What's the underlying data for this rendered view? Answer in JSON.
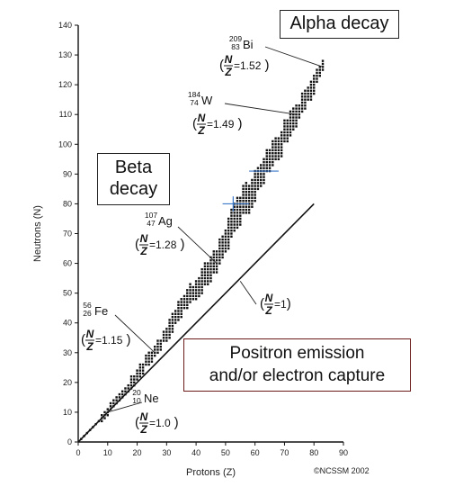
{
  "chart_data": {
    "type": "scatter",
    "xlabel": "Protons (Z)",
    "ylabel": "Neutrons (N)",
    "xlim": [
      0,
      90
    ],
    "ylim": [
      0,
      140
    ],
    "x_ticks": [
      "0",
      "10",
      "20",
      "30",
      "40",
      "50",
      "60",
      "70",
      "80",
      "90"
    ],
    "y_ticks": [
      "0",
      "10",
      "20",
      "30",
      "40",
      "50",
      "60",
      "70",
      "80",
      "90",
      "100",
      "110",
      "120",
      "130",
      "140"
    ],
    "grid": false,
    "reference_line": {
      "label": "=1",
      "num": "N",
      "den": "Z",
      "points": [
        [
          0,
          0
        ],
        [
          80,
          80
        ]
      ]
    },
    "stable_band": [
      [
        1,
        1
      ],
      [
        2,
        2
      ],
      [
        3,
        3
      ],
      [
        4,
        4
      ],
      [
        5,
        5
      ],
      [
        6,
        6
      ],
      [
        7,
        7
      ],
      [
        8,
        8
      ],
      [
        9,
        9
      ],
      [
        10,
        10
      ],
      [
        11,
        12
      ],
      [
        12,
        13
      ],
      [
        13,
        14
      ],
      [
        14,
        15
      ],
      [
        15,
        16
      ],
      [
        16,
        17
      ],
      [
        17,
        18
      ],
      [
        18,
        20
      ],
      [
        19,
        21
      ],
      [
        20,
        22
      ],
      [
        21,
        24
      ],
      [
        22,
        25
      ],
      [
        23,
        27
      ],
      [
        24,
        28
      ],
      [
        25,
        29
      ],
      [
        26,
        30
      ],
      [
        27,
        32
      ],
      [
        28,
        33
      ],
      [
        29,
        35
      ],
      [
        30,
        36
      ],
      [
        31,
        38
      ],
      [
        32,
        40
      ],
      [
        33,
        42
      ],
      [
        34,
        44
      ],
      [
        35,
        45
      ],
      [
        36,
        47
      ],
      [
        37,
        48
      ],
      [
        38,
        50
      ],
      [
        39,
        50
      ],
      [
        40,
        51
      ],
      [
        41,
        52
      ],
      [
        42,
        54
      ],
      [
        43,
        56
      ],
      [
        44,
        57
      ],
      [
        45,
        58
      ],
      [
        46,
        60
      ],
      [
        47,
        61
      ],
      [
        48,
        64
      ],
      [
        49,
        65
      ],
      [
        50,
        68
      ],
      [
        51,
        70
      ],
      [
        52,
        74
      ],
      [
        53,
        75
      ],
      [
        54,
        77
      ],
      [
        55,
        78
      ],
      [
        56,
        81
      ],
      [
        57,
        82
      ],
      [
        58,
        82
      ],
      [
        59,
        83
      ],
      [
        60,
        86
      ],
      [
        61,
        88
      ],
      [
        62,
        90
      ],
      [
        63,
        91
      ],
      [
        64,
        94
      ],
      [
        65,
        95
      ],
      [
        66,
        97
      ],
      [
        67,
        98
      ],
      [
        68,
        99
      ],
      [
        69,
        100
      ],
      [
        70,
        104
      ],
      [
        71,
        105
      ],
      [
        72,
        107
      ],
      [
        73,
        108
      ],
      [
        74,
        110
      ],
      [
        75,
        111
      ],
      [
        76,
        114
      ],
      [
        77,
        115
      ],
      [
        78,
        117
      ],
      [
        79,
        118
      ],
      [
        80,
        120
      ],
      [
        81,
        123
      ],
      [
        82,
        125
      ],
      [
        83,
        126
      ]
    ],
    "band_half_width": [
      0,
      0,
      0,
      0,
      0,
      0,
      0,
      1,
      1,
      1,
      1,
      1,
      1,
      1,
      1,
      1,
      1,
      2,
      2,
      2,
      2,
      2,
      2,
      2,
      2,
      2,
      2,
      2,
      2,
      2,
      3,
      3,
      3,
      3,
      3,
      3,
      3,
      3,
      3,
      3,
      3,
      4,
      4,
      4,
      4,
      4,
      4,
      4,
      4,
      4,
      5,
      5,
      5,
      5,
      5,
      5,
      5,
      5,
      5,
      5,
      4,
      4,
      4,
      4,
      4,
      4,
      4,
      4,
      4,
      4,
      4,
      4,
      4,
      4,
      3,
      3,
      3,
      3,
      3,
      3,
      3,
      2,
      2
    ],
    "blue_markers": [
      {
        "x": 53.5,
        "y": 80,
        "orientation": "h",
        "length": 9
      },
      {
        "x": 53.5,
        "y": 80,
        "orientation": "v",
        "length": 5
      },
      {
        "x": 63,
        "y": 91,
        "orientation": "h",
        "length": 10
      }
    ],
    "annotations": [
      {
        "key": "ne",
        "mass": "20",
        "atomic": "10",
        "symbol": "Ne",
        "num": "N",
        "den": "Z",
        "ratio": "=1.0",
        "point": [
          10,
          10
        ]
      },
      {
        "key": "fe",
        "mass": "56",
        "atomic": "26",
        "symbol": "Fe",
        "num": "N",
        "den": "Z",
        "ratio": "=1.15",
        "point": [
          26,
          30
        ]
      },
      {
        "key": "ag",
        "mass": "107",
        "atomic": "47",
        "symbol": "Ag",
        "num": "N",
        "den": "Z",
        "ratio": "=1.28",
        "point": [
          47,
          60
        ]
      },
      {
        "key": "w",
        "mass": "184",
        "atomic": "74",
        "symbol": "W",
        "num": "N",
        "den": "Z",
        "ratio": "=1.49",
        "point": [
          74,
          110
        ]
      },
      {
        "key": "bi",
        "mass": "209",
        "atomic": "83",
        "symbol": "Bi",
        "num": "N",
        "den": "Z",
        "ratio": "=1.52",
        "point": [
          83,
          126
        ]
      }
    ]
  },
  "labels": {
    "alpha": "Alpha decay",
    "beta_line1": "Beta",
    "beta_line2": "decay",
    "positron_line1": "Positron emission",
    "positron_line2": "and/or electron capture",
    "copyright": "©NCSSM 2002"
  },
  "colors": {
    "points": "#111111",
    "axis": "#111111",
    "blue_marker": "#3a78c9",
    "positron_border": "#6b1a1a"
  }
}
